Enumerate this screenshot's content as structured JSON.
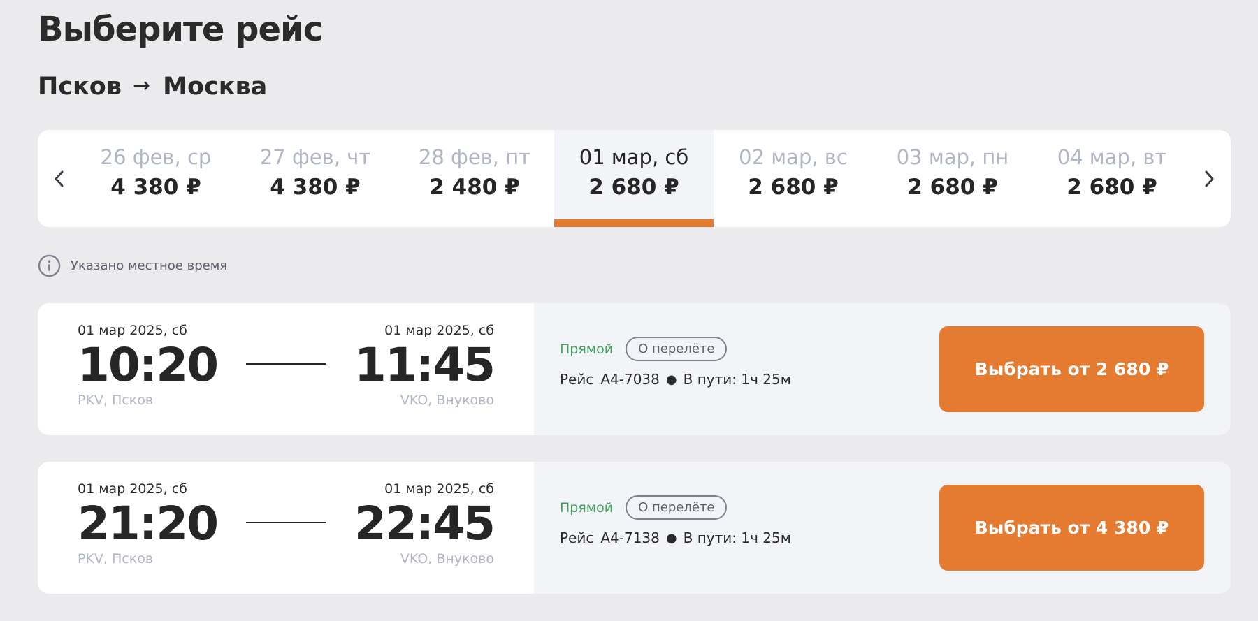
{
  "page": {
    "title": "Выберите рейс"
  },
  "route": {
    "from": "Псков",
    "arrow": "→",
    "to": "Москва"
  },
  "date_strip": {
    "prev_icon": "chevron-left-icon",
    "next_icon": "chevron-right-icon",
    "selected_index": 3,
    "dates": [
      {
        "label": "26 фев, ср",
        "price": "4 380 ₽"
      },
      {
        "label": "27 фев, чт",
        "price": "4 380 ₽"
      },
      {
        "label": "28 фев, пт",
        "price": "2 480 ₽"
      },
      {
        "label": "01 мар, сб",
        "price": "2 680 ₽"
      },
      {
        "label": "02 мар, вс",
        "price": "2 680 ₽"
      },
      {
        "label": "03 мар, пн",
        "price": "2 680 ₽"
      },
      {
        "label": "04 мар, вт",
        "price": "2 680 ₽"
      }
    ]
  },
  "notice": {
    "icon": "info-icon",
    "text": "Указано местное время"
  },
  "flights": [
    {
      "departure": {
        "date": "01 мар 2025, сб",
        "time": "10:20",
        "airport": "PKV, Псков"
      },
      "arrival": {
        "date": "01 мар 2025, сб",
        "time": "11:45",
        "airport": "VKO, Внуково"
      },
      "type": "Прямой",
      "about_label": "О перелёте",
      "flight_prefix": "Рейс",
      "flight_number": "А4-7038",
      "duration": "В пути: 1ч 25м",
      "select_label": "Выбрать от 2 680 ₽"
    },
    {
      "departure": {
        "date": "01 мар 2025, сб",
        "time": "21:20",
        "airport": "PKV, Псков"
      },
      "arrival": {
        "date": "01 мар 2025, сб",
        "time": "22:45",
        "airport": "VKO, Внуково"
      },
      "type": "Прямой",
      "about_label": "О перелёте",
      "flight_prefix": "Рейс",
      "flight_number": "А4-7138",
      "duration": "В пути: 1ч 25м",
      "select_label": "Выбрать от 4 380 ₽"
    }
  ],
  "colors": {
    "accent": "#e57a31",
    "direct": "#3fa35d",
    "muted": "#b0b6c6",
    "background": "#ebebee"
  }
}
